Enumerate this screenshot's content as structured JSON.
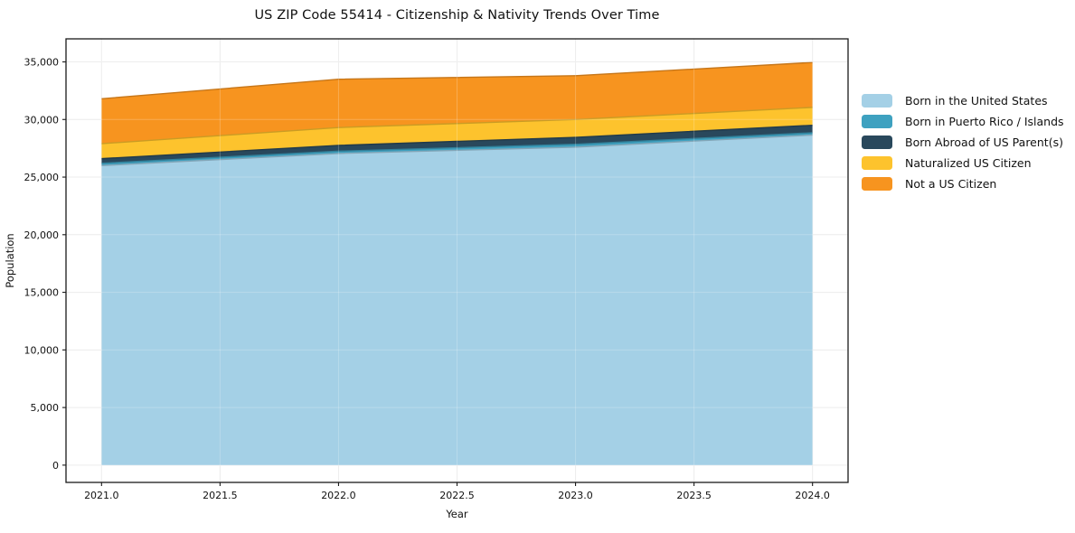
{
  "figure": {
    "background": "#ffffff",
    "text_color": "#111111",
    "spine_color": "#1a1a1a",
    "grid_color": "#e8e8e8"
  },
  "chart_data": {
    "type": "area",
    "stacked": true,
    "title": "US ZIP Code 55414 - Citizenship & Nativity Trends Over Time",
    "xlabel": "Year",
    "ylabel": "Population",
    "x": [
      2021,
      2022,
      2023,
      2024
    ],
    "series": [
      {
        "name": "Born in the United States",
        "color": "#A4D0E6",
        "values": [
          26000,
          27050,
          27600,
          28650
        ]
      },
      {
        "name": "Born in Puerto Rico / Islands",
        "color": "#3EA1C0",
        "values": [
          200,
          200,
          250,
          200
        ]
      },
      {
        "name": "Born Abroad of US Parent(s)",
        "color": "#29485C",
        "values": [
          400,
          500,
          600,
          650
        ]
      },
      {
        "name": "Naturalized US Citizen",
        "color": "#FDC32D",
        "values": [
          1300,
          1550,
          1550,
          1550
        ]
      },
      {
        "name": "Not a US Citizen",
        "color": "#F7941F",
        "values": [
          3900,
          4200,
          3800,
          3900
        ]
      }
    ],
    "totals": [
      31800,
      33500,
      33800,
      34950
    ],
    "xlim": [
      2020.85,
      2024.15
    ],
    "ylim": [
      -1500,
      37000
    ],
    "xticks": [
      {
        "v": 2021.0,
        "label": "2021.0"
      },
      {
        "v": 2021.5,
        "label": "2021.5"
      },
      {
        "v": 2022.0,
        "label": "2022.0"
      },
      {
        "v": 2022.5,
        "label": "2022.5"
      },
      {
        "v": 2023.0,
        "label": "2023.0"
      },
      {
        "v": 2023.5,
        "label": "2023.5"
      },
      {
        "v": 2024.0,
        "label": "2024.0"
      }
    ],
    "yticks": [
      {
        "v": 0,
        "label": "0"
      },
      {
        "v": 5000,
        "label": "5,000"
      },
      {
        "v": 10000,
        "label": "10,000"
      },
      {
        "v": 15000,
        "label": "15,000"
      },
      {
        "v": 20000,
        "label": "20,000"
      },
      {
        "v": 25000,
        "label": "25,000"
      },
      {
        "v": 30000,
        "label": "30,000"
      },
      {
        "v": 35000,
        "label": "35,000"
      }
    ],
    "grid": true,
    "legend_position": "right-outside"
  }
}
